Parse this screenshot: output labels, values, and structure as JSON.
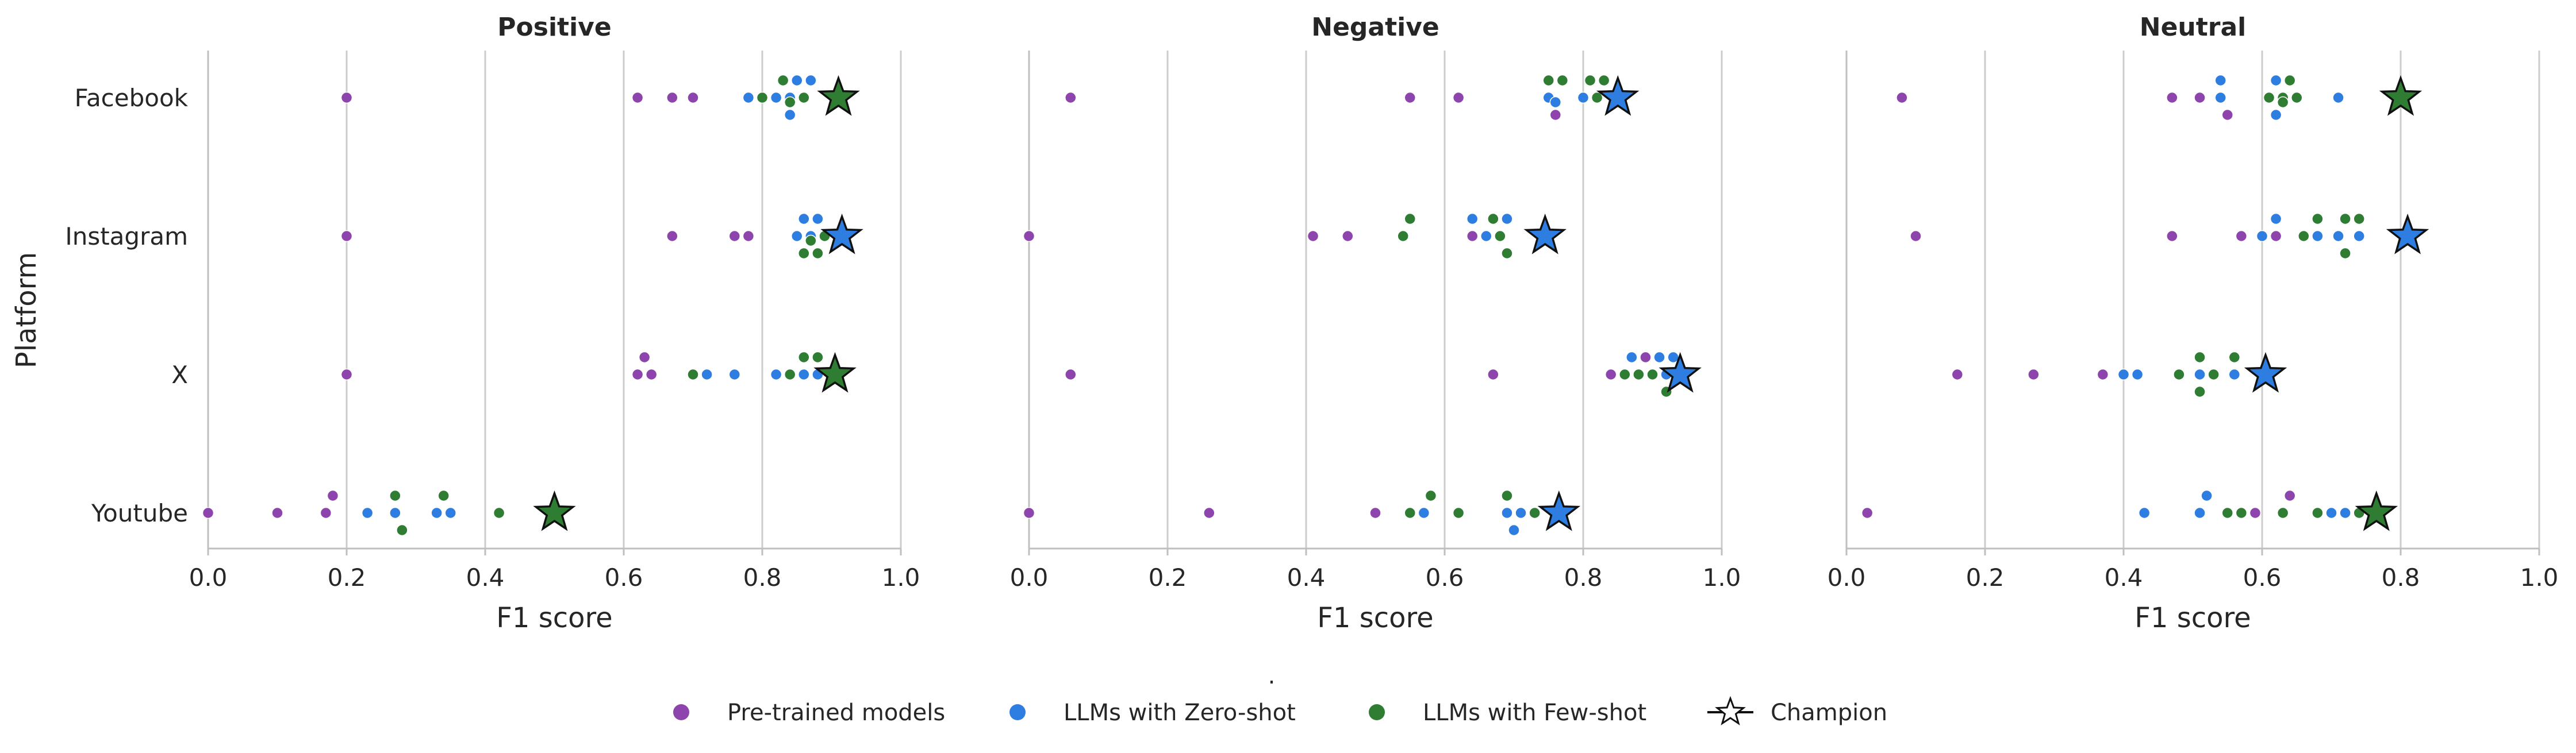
{
  "chart_data": {
    "type": "scatter",
    "ylabel": "Platform",
    "categories": [
      "Facebook",
      "Instagram",
      "X",
      "Youtube"
    ],
    "xlim": [
      0,
      1
    ],
    "xticks": [
      "0.0",
      "0.2",
      "0.4",
      "0.6",
      "0.8",
      "1.0"
    ],
    "grid": "vertical",
    "legend_position": "bottom-center",
    "legend_dot": ".",
    "legend": [
      {
        "key": "pretrained",
        "label": "Pre-trained models",
        "color": "#8e44ad",
        "marker": "dot"
      },
      {
        "key": "zeroshot",
        "label": "LLMs with Zero-shot",
        "color": "#2e7de0",
        "marker": "dot"
      },
      {
        "key": "fewshot",
        "label": "LLMs with Few-shot",
        "color": "#2e7d32",
        "marker": "dot"
      },
      {
        "key": "champion",
        "label": "Champion",
        "color": "#ffffff",
        "marker": "star"
      }
    ],
    "panels": [
      {
        "title": "Positive",
        "xlabel": "F1 score",
        "data": {
          "Facebook": {
            "pretrained": [
              0.2,
              0.62,
              0.67,
              0.7
            ],
            "zeroshot": [
              0.78,
              0.82,
              0.84,
              0.84,
              0.85,
              0.87
            ],
            "fewshot": [
              0.8,
              0.83,
              0.84,
              0.86,
              0.91
            ],
            "champion": {
              "value": 0.91,
              "group": "fewshot"
            }
          },
          "Instagram": {
            "pretrained": [
              0.2,
              0.67,
              0.76,
              0.78
            ],
            "zeroshot": [
              0.85,
              0.86,
              0.87,
              0.88
            ],
            "fewshot": [
              0.86,
              0.87,
              0.87,
              0.88,
              0.89
            ],
            "champion": {
              "value": 0.915,
              "group": "zeroshot"
            }
          },
          "X": {
            "pretrained": [
              0.2,
              0.62,
              0.63,
              0.64
            ],
            "zeroshot": [
              0.72,
              0.76,
              0.82,
              0.86,
              0.88
            ],
            "fewshot": [
              0.7,
              0.84,
              0.86,
              0.88,
              0.9
            ],
            "champion": {
              "value": 0.905,
              "group": "fewshot"
            }
          },
          "Youtube": {
            "pretrained": [
              0.0,
              0.1,
              0.17,
              0.18
            ],
            "zeroshot": [
              0.23,
              0.27,
              0.33,
              0.35
            ],
            "fewshot": [
              0.27,
              0.28,
              0.34,
              0.42,
              0.5
            ],
            "champion": {
              "value": 0.5,
              "group": "fewshot"
            }
          }
        }
      },
      {
        "title": "Negative",
        "xlabel": "F1 score",
        "data": {
          "Facebook": {
            "pretrained": [
              0.06,
              0.55,
              0.62,
              0.76
            ],
            "zeroshot": [
              0.75,
              0.76,
              0.8,
              0.85
            ],
            "fewshot": [
              0.75,
              0.77,
              0.81,
              0.82,
              0.83
            ],
            "champion": {
              "value": 0.85,
              "group": "zeroshot"
            }
          },
          "Instagram": {
            "pretrained": [
              0.0,
              0.41,
              0.46,
              0.64
            ],
            "zeroshot": [
              0.64,
              0.66,
              0.69
            ],
            "fewshot": [
              0.54,
              0.55,
              0.67,
              0.68,
              0.69
            ],
            "champion": {
              "value": 0.745,
              "group": "zeroshot"
            }
          },
          "X": {
            "pretrained": [
              0.06,
              0.67,
              0.84,
              0.89
            ],
            "zeroshot": [
              0.87,
              0.91,
              0.92,
              0.93
            ],
            "fewshot": [
              0.86,
              0.88,
              0.9,
              0.92
            ],
            "champion": {
              "value": 0.94,
              "group": "zeroshot"
            }
          },
          "Youtube": {
            "pretrained": [
              0.0,
              0.26,
              0.5
            ],
            "zeroshot": [
              0.57,
              0.69,
              0.7,
              0.71
            ],
            "fewshot": [
              0.55,
              0.58,
              0.62,
              0.69,
              0.73
            ],
            "champion": {
              "value": 0.765,
              "group": "zeroshot"
            }
          }
        }
      },
      {
        "title": "Neutral",
        "xlabel": "F1 score",
        "data": {
          "Facebook": {
            "pretrained": [
              0.08,
              0.47,
              0.51,
              0.55
            ],
            "zeroshot": [
              0.54,
              0.54,
              0.62,
              0.62,
              0.71
            ],
            "fewshot": [
              0.61,
              0.63,
              0.63,
              0.64,
              0.65
            ],
            "champion": {
              "value": 0.8,
              "group": "fewshot"
            }
          },
          "Instagram": {
            "pretrained": [
              0.1,
              0.47,
              0.57,
              0.62
            ],
            "zeroshot": [
              0.6,
              0.62,
              0.68,
              0.71,
              0.74
            ],
            "fewshot": [
              0.66,
              0.68,
              0.72,
              0.72,
              0.74
            ],
            "champion": {
              "value": 0.81,
              "group": "zeroshot"
            }
          },
          "X": {
            "pretrained": [
              0.16,
              0.27,
              0.37
            ],
            "zeroshot": [
              0.4,
              0.42,
              0.51,
              0.56
            ],
            "fewshot": [
              0.48,
              0.51,
              0.51,
              0.53,
              0.56
            ],
            "champion": {
              "value": 0.605,
              "group": "zeroshot"
            }
          },
          "Youtube": {
            "pretrained": [
              0.03,
              0.59,
              0.64
            ],
            "zeroshot": [
              0.43,
              0.51,
              0.52,
              0.7,
              0.72
            ],
            "fewshot": [
              0.55,
              0.57,
              0.63,
              0.68,
              0.74
            ],
            "champion": {
              "value": 0.765,
              "group": "fewshot"
            }
          }
        }
      }
    ]
  }
}
